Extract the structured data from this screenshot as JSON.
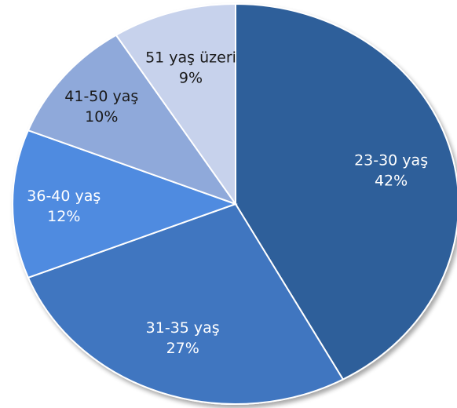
{
  "chart_data": {
    "type": "pie",
    "slices": [
      {
        "label": "23-30 yaş",
        "value": 42,
        "value_label": "42%",
        "color": "#2f5f9a",
        "label_color": "#ffffff"
      },
      {
        "label": "31-35 yaş",
        "value": 27,
        "value_label": "27%",
        "color": "#3f76c0",
        "label_color": "#ffffff"
      },
      {
        "label": "36-40 yaş",
        "value": 12,
        "value_label": "12%",
        "color": "#4f8be0",
        "label_color": "#ffffff"
      },
      {
        "label": "41-50 yaş",
        "value": 10,
        "value_label": "10%",
        "color": "#8fa9da",
        "label_color": "#1a1a1a"
      },
      {
        "label": "51 yaş üzeri",
        "value": 9,
        "value_label": "9%",
        "color": "#c7d2ec",
        "label_color": "#1a1a1a"
      }
    ],
    "start_angle": "12 o'clock",
    "direction": "clockwise",
    "legend": "none",
    "title": ""
  }
}
